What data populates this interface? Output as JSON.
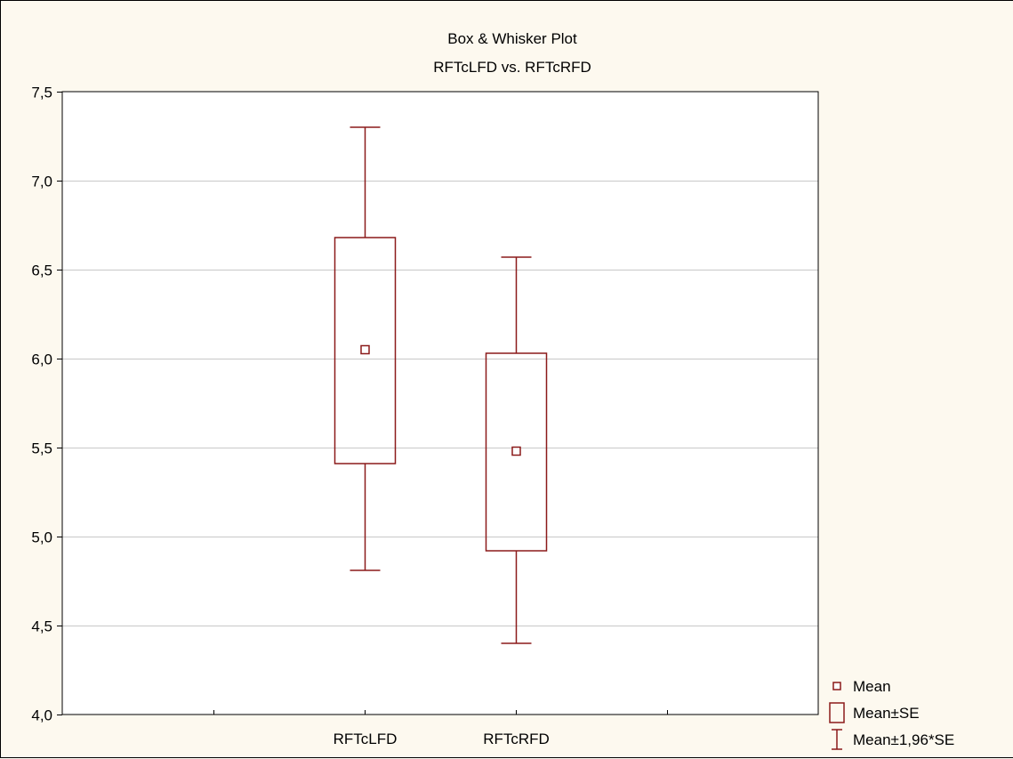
{
  "chart_data": {
    "type": "box",
    "title": "Box & Whisker Plot",
    "subtitle": "RFTcLFD  vs. RFTcRFD",
    "xlabel": "",
    "ylabel": "",
    "ylim": [
      4.0,
      7.5
    ],
    "y_ticks": [
      {
        "value": 4.0,
        "label": "4,0"
      },
      {
        "value": 4.5,
        "label": "4,5"
      },
      {
        "value": 5.0,
        "label": "5,0"
      },
      {
        "value": 5.5,
        "label": "5,5"
      },
      {
        "value": 6.0,
        "label": "6,0"
      },
      {
        "value": 6.5,
        "label": "6,5"
      },
      {
        "value": 7.0,
        "label": "7,0"
      },
      {
        "value": 7.5,
        "label": "7,5"
      }
    ],
    "grid": true,
    "categories": [
      "RFTcLFD",
      "RFTcRFD"
    ],
    "boxes": [
      {
        "category": "RFTcLFD",
        "mean": 6.05,
        "se_low": 5.41,
        "se_high": 6.68,
        "whisker_low": 4.81,
        "whisker_high": 7.3
      },
      {
        "category": "RFTcRFD",
        "mean": 5.48,
        "se_low": 4.92,
        "se_high": 6.03,
        "whisker_low": 4.4,
        "whisker_high": 6.57
      }
    ],
    "legend_position": "bottom-right",
    "legend": [
      {
        "symbol": "point",
        "label": "Mean"
      },
      {
        "symbol": "box",
        "label": "Mean±SE"
      },
      {
        "symbol": "whisker",
        "label": "Mean±1,96*SE"
      }
    ],
    "colors": {
      "series": "#8b1a1a",
      "background": "#fdf9ef",
      "plot_area": "#ffffff",
      "grid": "#c8c8c8"
    }
  }
}
